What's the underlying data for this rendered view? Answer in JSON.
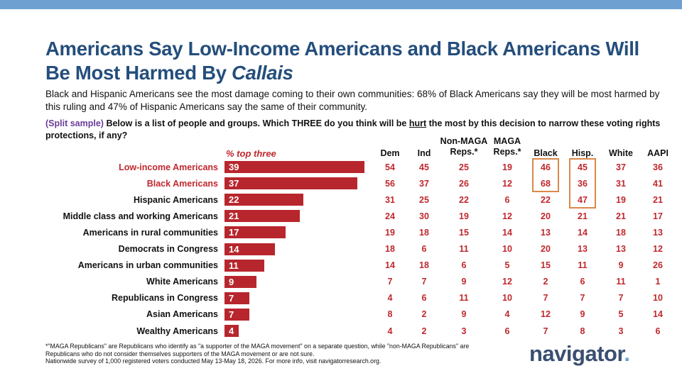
{
  "title_line1": "Americans Say Low-Income Americans and Black Americans Will",
  "title_line2_prefix": "Be Most Harmed By ",
  "title_line2_italic": "Callais",
  "subtitle": "Black and Hispanic Americans see the most damage coming to their own communities: 68% of Black Americans say they will be most harmed by this ruling and 47% of Hispanic Americans say the same of their community.",
  "question": {
    "split": "(Split sample)",
    "part1": " Below is a list of people and groups. Which THREE do you think will be ",
    "underlined": "hurt",
    "part2": " the most by this decision to narrow these voting rights protections, if any?"
  },
  "bar_header": "% top three",
  "footnote": {
    "line1": "*\"MAGA Republicans\" are Republicans who identify as \"a supporter of the MAGA movement\" on a separate question, while \"non-MAGA Republicans\" are",
    "line2": "Republicans who do not consider themselves supporters of the MAGA movement or are not sure.",
    "line3": "Nationwide survey of 1,000 registered voters conducted May 13-May 18, 2026. For more info, visit navigatorresearch.org."
  },
  "logo": {
    "text": "navigator",
    "dot": "."
  },
  "colors": {
    "bar": "#b8262d",
    "title": "#244e7c",
    "highlight": "#d9894a",
    "topbar": "#6ea1d2",
    "accent_text": "#c0282e"
  },
  "chart_data": {
    "type": "bar",
    "orientation": "horizontal",
    "categories": [
      "Low-income Americans",
      "Black Americans",
      "Hispanic Americans",
      "Middle class and working Americans",
      "Americans in rural communities",
      "Democrats in Congress",
      "Americans in urban communities",
      "White Americans",
      "Republicans in Congress",
      "Asian Americans",
      "Wealthy Americans"
    ],
    "highlighted_categories": [
      "Low-income Americans",
      "Black Americans"
    ],
    "values": [
      39,
      37,
      22,
      21,
      17,
      14,
      11,
      9,
      7,
      7,
      4
    ],
    "value_label": "% top three",
    "table_columns": [
      "Dem",
      "Ind",
      "Non-MAGA Reps.*",
      "MAGA Reps.*",
      "Black",
      "Hisp.",
      "White",
      "AAPI"
    ],
    "table": [
      [
        54,
        45,
        25,
        19,
        46,
        45,
        37,
        36
      ],
      [
        56,
        37,
        26,
        12,
        68,
        36,
        31,
        41
      ],
      [
        31,
        25,
        22,
        6,
        22,
        47,
        19,
        21
      ],
      [
        24,
        30,
        19,
        12,
        20,
        21,
        21,
        17
      ],
      [
        19,
        18,
        15,
        14,
        13,
        14,
        18,
        13
      ],
      [
        18,
        6,
        11,
        10,
        20,
        13,
        13,
        12
      ],
      [
        14,
        18,
        6,
        5,
        15,
        11,
        9,
        26
      ],
      [
        7,
        7,
        9,
        12,
        2,
        6,
        11,
        1
      ],
      [
        4,
        6,
        11,
        10,
        7,
        7,
        7,
        10
      ],
      [
        8,
        2,
        9,
        4,
        12,
        9,
        5,
        14
      ],
      [
        4,
        2,
        3,
        6,
        7,
        8,
        3,
        6
      ]
    ],
    "highlighted_cells": [
      {
        "column": "Black",
        "rows": [
          0,
          1
        ]
      },
      {
        "column": "Hisp.",
        "rows": [
          0,
          1,
          2
        ]
      }
    ]
  }
}
